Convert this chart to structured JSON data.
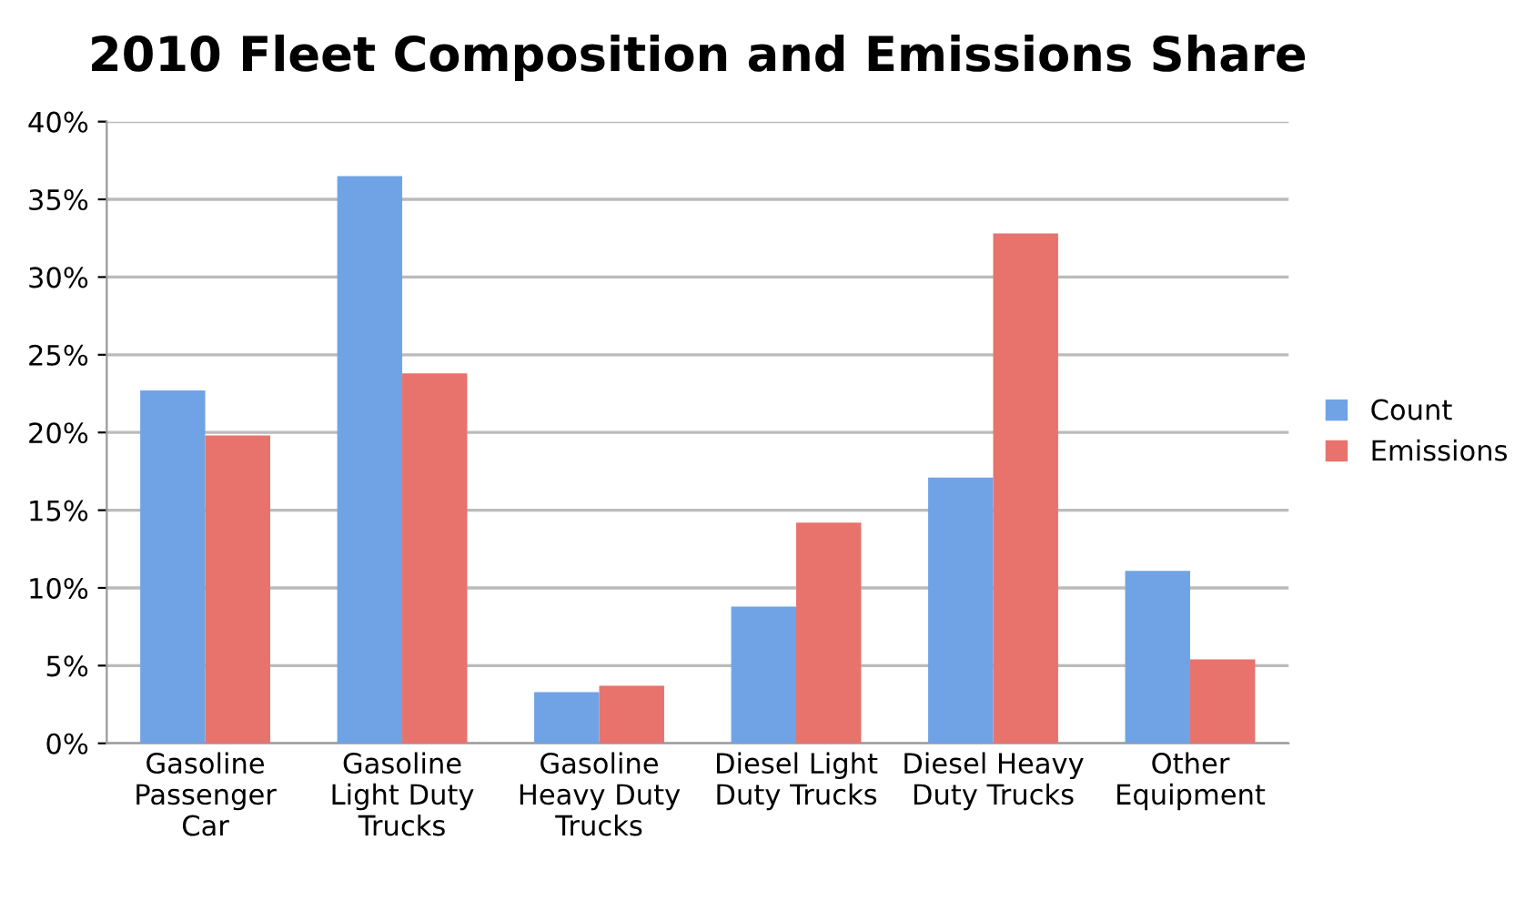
{
  "chart_data": {
    "type": "bar",
    "title": "2010 Fleet Composition and Emissions Share",
    "categories": [
      "Gasoline\nPassenger\nCar",
      "Gasoline\nLight Duty\nTrucks",
      "Gasoline\nHeavy Duty\nTrucks",
      "Diesel Light\nDuty Trucks",
      "Diesel Heavy\nDuty Trucks",
      "Other\nEquipment"
    ],
    "series": [
      {
        "name": "Count",
        "color": "#6fa3e6",
        "values": [
          22.7,
          36.5,
          3.3,
          8.8,
          17.1,
          11.1
        ]
      },
      {
        "name": "Emissions",
        "color": "#e8736c",
        "values": [
          19.8,
          23.8,
          3.7,
          14.2,
          32.8,
          5.4
        ]
      }
    ],
    "ylim": [
      0,
      40
    ],
    "yticks": [
      {
        "value": 0,
        "label": "0%"
      },
      {
        "value": 5,
        "label": "5%"
      },
      {
        "value": 10,
        "label": "10%"
      },
      {
        "value": 15,
        "label": "15%"
      },
      {
        "value": 20,
        "label": "20%"
      },
      {
        "value": 25,
        "label": "25%"
      },
      {
        "value": 30,
        "label": "30%"
      },
      {
        "value": 35,
        "label": "35%"
      },
      {
        "value": 40,
        "label": "40%"
      }
    ],
    "grid": "y",
    "legend": "right"
  }
}
